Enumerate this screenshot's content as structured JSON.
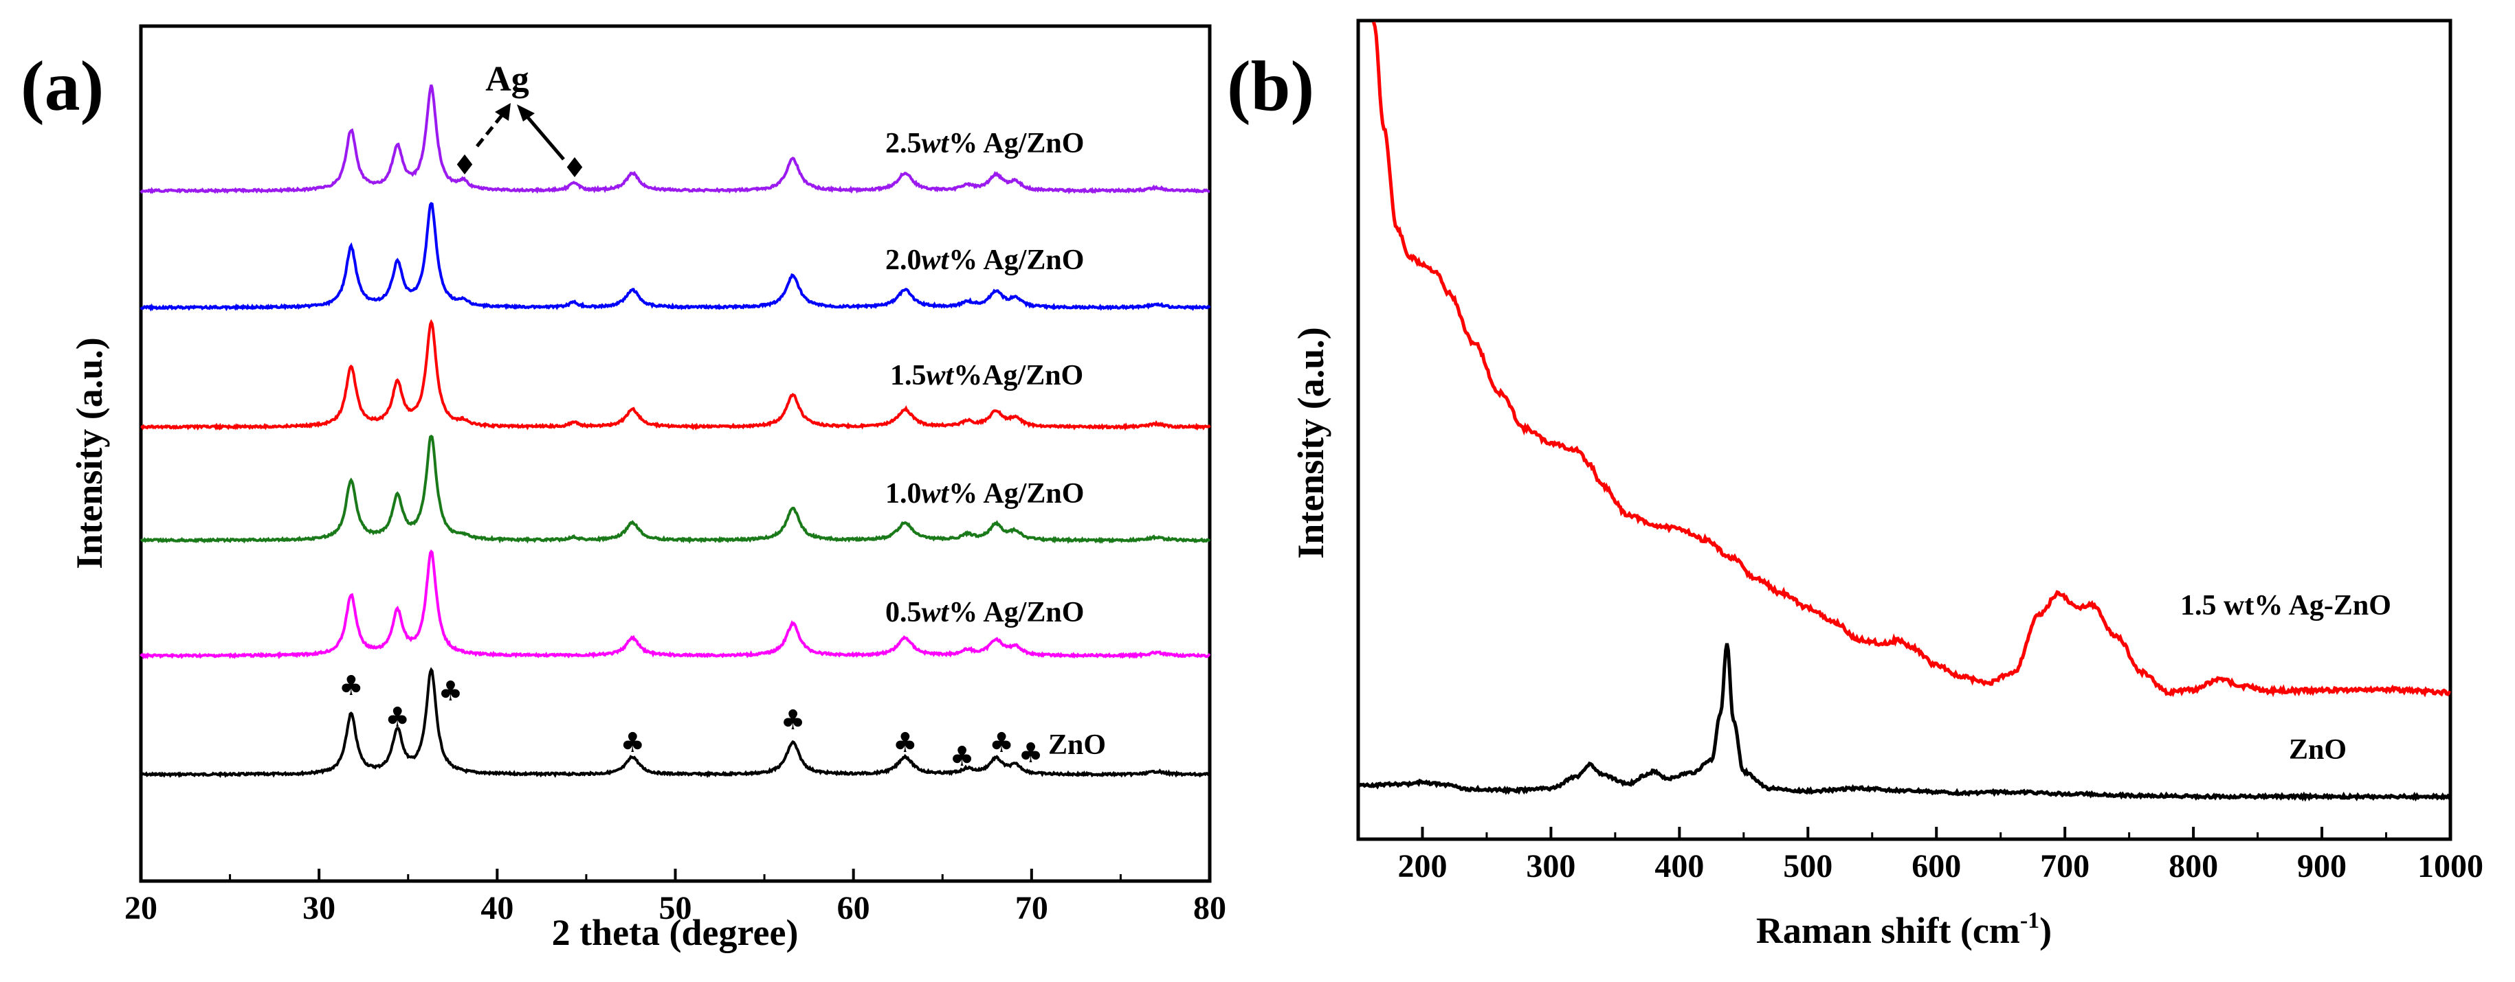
{
  "chart_data": [
    {
      "type": "line",
      "panel": "(a)",
      "xlabel": "2 theta (degree)",
      "ylabel": "Intensity (a.u.)",
      "xlim": [
        20,
        80
      ],
      "xticks": [
        20,
        30,
        40,
        50,
        60,
        70,
        80
      ],
      "peaks": [
        {
          "pos": 31.8,
          "width": 0.35,
          "rel": 0.58
        },
        {
          "pos": 34.4,
          "width": 0.35,
          "rel": 0.41
        },
        {
          "pos": 36.3,
          "width": 0.35,
          "rel": 1.0
        },
        {
          "pos": 47.6,
          "width": 0.45,
          "rel": 0.17
        },
        {
          "pos": 56.6,
          "width": 0.45,
          "rel": 0.31
        },
        {
          "pos": 62.9,
          "width": 0.5,
          "rel": 0.17
        },
        {
          "pos": 66.4,
          "width": 0.4,
          "rel": 0.05
        },
        {
          "pos": 68.0,
          "width": 0.45,
          "rel": 0.15
        },
        {
          "pos": 69.1,
          "width": 0.4,
          "rel": 0.08
        },
        {
          "pos": 77.0,
          "width": 0.5,
          "rel": 0.03
        }
      ],
      "ag_peaks": [
        {
          "pos": 38.1,
          "width": 0.3
        },
        {
          "pos": 44.3,
          "width": 0.3
        }
      ],
      "series": [
        {
          "name": "ZnO",
          "label": "ZnO",
          "color": "#000000",
          "ag": 0.0
        },
        {
          "name": "0.5wt% Ag/ZnO",
          "label_pre": "0.5",
          "label_post": "% Ag/ZnO",
          "color": "#ff00ff",
          "ag": 0.0
        },
        {
          "name": "1.0wt% Ag/ZnO",
          "label_pre": "1.0",
          "label_post": "% Ag/ZnO",
          "color": "#1a7a1a",
          "ag": 0.05
        },
        {
          "name": "1.5wt%Ag/ZnO",
          "label_pre": "1.5",
          "label_post": "%Ag/ZnO",
          "color": "#ff0000",
          "ag": 0.07
        },
        {
          "name": "2.0wt% Ag/ZnO",
          "label_pre": "2.0",
          "label_post": "% Ag/ZnO",
          "color": "#0000ff",
          "ag": 0.08
        },
        {
          "name": "2.5wt% Ag/ZnO",
          "label_pre": "2.5",
          "label_post": "% Ag/ZnO",
          "color": "#9a1af0",
          "ag": 0.13
        }
      ],
      "wt_text": "wt",
      "annotation": {
        "text": "Ag",
        "marker": "♦"
      },
      "znO_marker": "♣",
      "znO_marker_positions": [
        31.8,
        34.4,
        36.3,
        47.6,
        56.6,
        62.9,
        66.4,
        68.0,
        69.1
      ]
    },
    {
      "type": "line",
      "panel": "(b)",
      "xlabel": "Raman shift (cm",
      "xlabel_sup": "-1",
      "xlabel_end": ")",
      "ylabel": "Intensity (a.u.)",
      "xlim": [
        150,
        1000
      ],
      "xticks": [
        200,
        300,
        400,
        500,
        600,
        700,
        800,
        900,
        1000
      ],
      "series": [
        {
          "name": "1.5 wt% Ag-ZnO",
          "color": "#ff0000",
          "x": [
            162,
            170,
            180,
            190,
            200,
            210,
            220,
            240,
            260,
            280,
            300,
            320,
            330,
            340,
            360,
            380,
            400,
            420,
            440,
            460,
            480,
            500,
            520,
            540,
            560,
            570,
            580,
            600,
            620,
            640,
            660,
            680,
            695,
            710,
            720,
            740,
            760,
            780,
            800,
            820,
            840,
            860,
            880,
            900,
            940,
            1000
          ],
          "y": [
            100,
            85,
            71,
            67,
            66,
            65,
            62,
            55,
            48,
            43,
            41,
            40,
            38,
            35,
            31,
            29.5,
            29,
            27.5,
            25,
            22,
            20,
            18,
            16,
            13.5,
            13,
            13.5,
            12.5,
            10,
            8.3,
            7.5,
            9,
            17,
            20,
            18,
            18.5,
            14,
            9,
            6.2,
            6.5,
            8,
            7,
            6.4,
            6.4,
            6.5,
            6.6,
            6.2
          ]
        },
        {
          "name": "ZnO",
          "color": "#000000",
          "x": [
            150,
            190,
            200,
            210,
            240,
            270,
            300,
            320,
            330,
            340,
            360,
            375,
            380,
            390,
            410,
            425,
            432,
            437,
            442,
            450,
            470,
            500,
            540,
            580,
            620,
            660,
            700,
            760,
            820,
            900,
            1000
          ],
          "y": [
            2.0,
            2.2,
            2.4,
            2.2,
            1.6,
            1.5,
            1.7,
            3.0,
            4.3,
            3.2,
            2.2,
            3.2,
            3.6,
            2.8,
            3.4,
            4.8,
            10.0,
            17.5,
            9.0,
            3.5,
            1.7,
            1.4,
            1.7,
            1.4,
            1.2,
            1.3,
            1.1,
            0.9,
            0.8,
            0.8,
            0.8
          ]
        }
      ]
    }
  ]
}
